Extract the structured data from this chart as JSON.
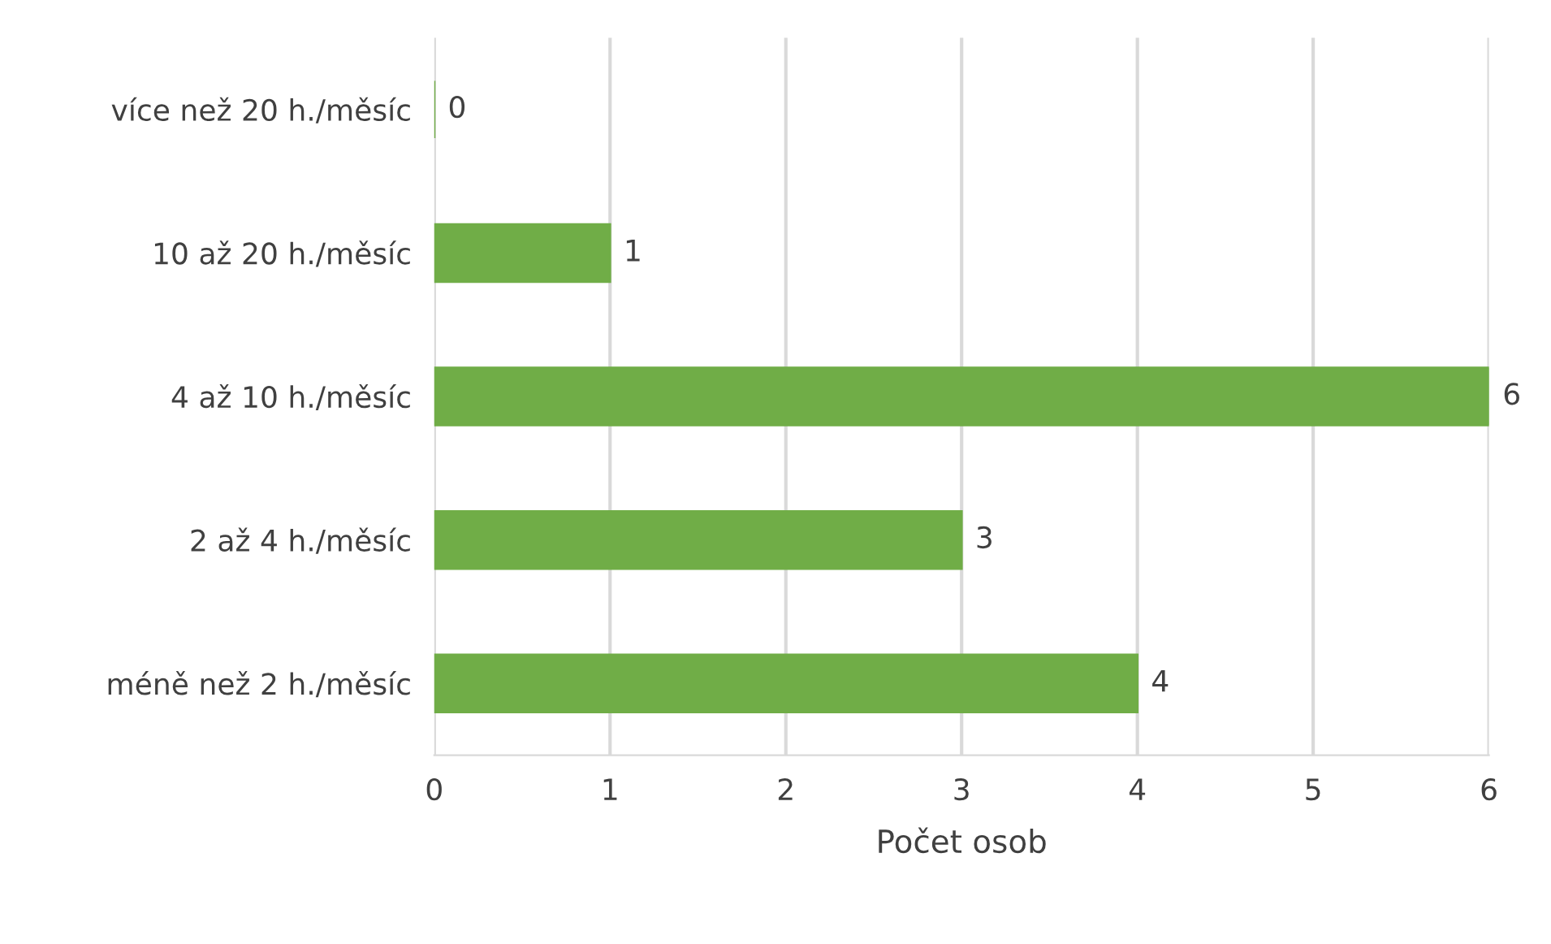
{
  "chart_data": {
    "type": "bar",
    "orientation": "horizontal",
    "categories": [
      "více než 20 h./měsíc",
      "10 až 20 h./měsíc",
      "4 až 10 h./měsíc",
      "2 až 4 h./měsíc",
      "méně než 2 h./měsíc"
    ],
    "values": [
      0,
      1,
      6,
      3,
      4
    ],
    "color": "#70ad47",
    "xlabel": "Počet osob",
    "xlim": [
      0,
      6
    ],
    "xticks": [
      0,
      1,
      2,
      3,
      4,
      5,
      6
    ],
    "grid": "x",
    "data_labels": true,
    "legend": false
  }
}
